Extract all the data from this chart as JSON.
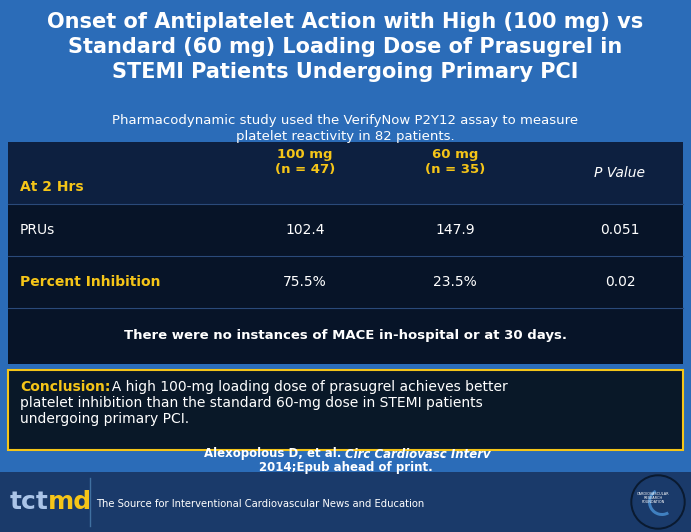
{
  "title": "Onset of Antiplatelet Action with High (100 mg) vs\nStandard (60 mg) Loading Dose of Prasugrel in\nSTEMI Patients Undergoing Primary PCI",
  "subtitle": "Pharmacodynamic study used the VerifyNow P2Y12 assay to measure\nplatelet reactivity in 82 patients.",
  "bg_color": "#2b6cb8",
  "table_bg": "#071428",
  "header_row_bg": "#0d2040",
  "row1_bg": "#071428",
  "row2_bg": "#0a1a30",
  "mace_bg": "#071428",
  "conclusion_bg": "#091828",
  "footer_bg": "#1a3a6a",
  "col1_header": "At 2 Hrs",
  "col2_header": "100 mg\n(n = 47)",
  "col3_header": "60 mg\n(n = 35)",
  "col4_header": "P Value",
  "row1_label": "PRUs",
  "row1_col2": "102.4",
  "row1_col3": "147.9",
  "row1_col4": "0.051",
  "row2_label": "Percent Inhibition",
  "row2_col2": "75.5%",
  "row2_col3": "23.5%",
  "row2_col4": "0.02",
  "mace_text": "There were no instances of MACE in-hospital or at 30 days.",
  "conclusion_label": "Conclusion:",
  "conclusion_body": "  A high 100-mg loading dose of prasugrel achieves better\nplatelet inhibition than the standard 60-mg dose in STEMI patients\nundergoing primary PCI.",
  "citation_line1_normal": "Alexopolous D, et al. ",
  "citation_line1_italic": "Circ Cardiovasc Interv",
  "citation_line1_end": ".",
  "citation_line2": "2014;Epub ahead of print.",
  "footer_text": "The Source for Interventional Cardiovascular News and Education",
  "yellow": "#f5c518",
  "white": "#ffffff",
  "light_gray": "#d0d8e8"
}
